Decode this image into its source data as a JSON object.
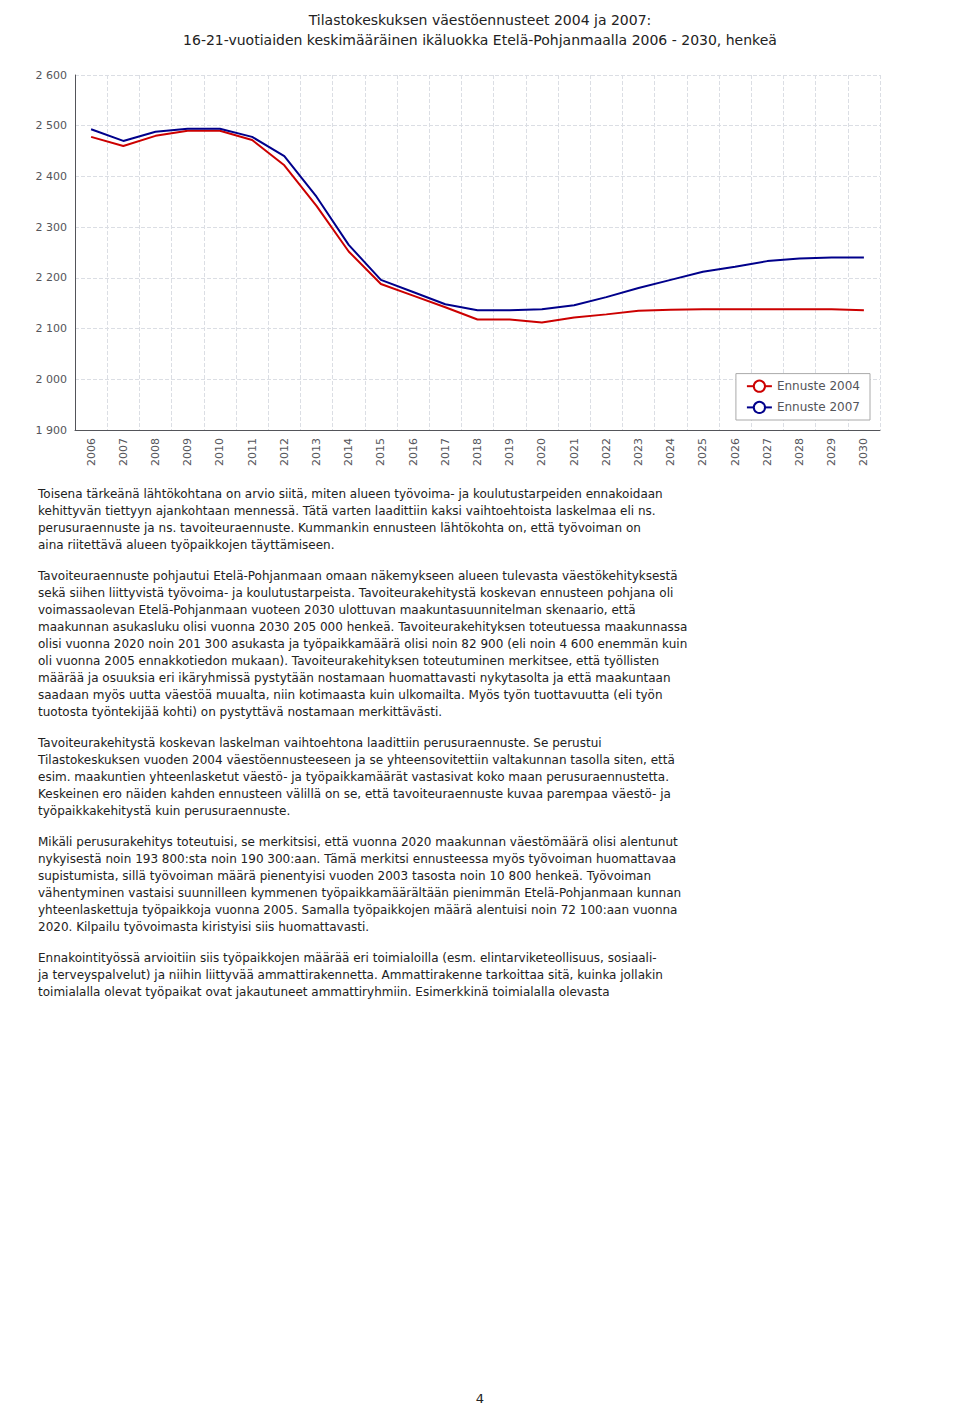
{
  "chart_data": {
    "type": "line",
    "title": "Tilastokeskuksen väestöennusteet 2004 ja 2007:",
    "subtitle": "16-21-vuotiaiden keskimääräinen ikäluokka Etelä-Pohjanmaalla 2006 - 2030, henkeä",
    "categories": [
      "2006",
      "2007",
      "2008",
      "2009",
      "2010",
      "2011",
      "2012",
      "2013",
      "2014",
      "2015",
      "2016",
      "2017",
      "2018",
      "2019",
      "2020",
      "2021",
      "2022",
      "2023",
      "2024",
      "2025",
      "2026",
      "2027",
      "2028",
      "2029",
      "2030"
    ],
    "series": [
      {
        "name": "Ennuste 2004",
        "color": "#cc0000",
        "values": [
          2478,
          2460,
          2480,
          2490,
          2490,
          2472,
          2422,
          2342,
          2252,
          2188,
          2165,
          2142,
          2118,
          2118,
          2112,
          2122,
          2128,
          2135,
          2137,
          2138,
          2138,
          2138,
          2138,
          2138,
          2136
        ]
      },
      {
        "name": "Ennuste 2007",
        "color": "#00008b",
        "values": [
          2493,
          2470,
          2488,
          2494,
          2494,
          2478,
          2440,
          2360,
          2265,
          2196,
          2172,
          2148,
          2136,
          2136,
          2138,
          2146,
          2162,
          2180,
          2196,
          2212,
          2222,
          2233,
          2238,
          2240,
          2240
        ]
      }
    ],
    "ylim": [
      1900,
      2600
    ],
    "yticks": [
      {
        "value": 1900,
        "label": "1 900"
      },
      {
        "value": 2000,
        "label": "2 000"
      },
      {
        "value": 2100,
        "label": "2 100"
      },
      {
        "value": 2200,
        "label": "2 200"
      },
      {
        "value": 2300,
        "label": "2 300"
      },
      {
        "value": 2400,
        "label": "2 400"
      },
      {
        "value": 2500,
        "label": "2 500"
      },
      {
        "value": 2600,
        "label": "2 600"
      }
    ],
    "grid": true,
    "legend": "lower right",
    "annotations": [
      "Toisena tärkeänä lähtökohtana on arvio siitä, miten alueen työvoima- ja koulutustarpeiden ennakoidaan\nkehittyvän tiettyyn ajankohtaan mennessä. Tätä varten laadittiin kaksi vaihtoehtoista laskelmaa eli ns.\nperusuraennuste ja ns. tavoiteuraennuste. Kummankin ennusteen lähtökohta on, että työvoiman on\naina riitettävä alueen työpaikkojen täyttämiseen.",
      "Tavoiteuraennuste pohjautui Etelä-Pohjanmaan omaan näkemykseen alueen tulevasta väestökehityksestä\nsekä siihen liittyvistä työvoima- ja koulutustarpeista. Tavoiteurakehitystä koskevan ennusteen pohjana oli\nvoimassaolevan Etelä-Pohjanmaan vuoteen 2030 ulottuvan maakuntasuunnitelman skenaario, että\nmaakunnan asukasluku olisi vuonna 2030 205 000 henkeä. Tavoiteurakehityksen toteutuessa maakunnassa\nolisi vuonna 2020 noin 201 300 asukasta ja työpaikkamäärä olisi noin 82 900 (eli noin 4 600 enemmän kuin\noli vuonna 2005 ennakkotiedon mukaan). Tavoiteurakehityksen toteutuminen merkitsee, että työllisten\nmäärää ja osuuksia eri ikäryhmissä pystytään nostamaan huomattavasti nykytasolta ja että maakuntaan\nsaadaan myös uutta väestöä muualta, niin kotimaasta kuin ulkomailta. Myös työn tuottavuutta (eli työn\ntuotosta työntekijää kohti) on pystyttävä nostamaan merkittävästi.",
      "Tavoiteurakehitystä koskevan laskelman vaihtoehtona laadittiin perusuraennuste. Se perustui\nTilastokeskuksen vuoden 2004 väestöennusteeseen ja se yhteensovitettiin valtakunnan tasolla siten, että\nesim. maakuntien yhteenlasketut väestö- ja työpaikkamäärät vastasivat koko maan perusuraennustetta.\nKeskeinen ero näiden kahden ennusteen välillä on se, että tavoiteuraennuste kuvaa parempaa väestö- ja\ntyöpaikkakehitystä kuin perusuraennuste.",
      "Mikäli perusurakehitys toteutuisi, se merkitsisi, että vuonna 2020 maakunnan väestömäärä olisi alentunut\nnykyisestä noin 193 800:sta noin 190 300:aan. Tämä merkitsi ennusteessa myös työvoiman huomattavaa\nsupistumista, sillä työvoiman määrä pienentyisi vuoden 2003 tasosta noin 10 800 henkeä. Työvoiman\nvähentyminen vastaisi suunnilleen kymmenen työpaikkamäärältään pienimmän Etelä-Pohjanmaan kunnan\nyhteenlaskettuja työpaikkoja vuonna 2005. Samalla työpaikkojen määrä alentuisi noin 72 100:aan vuonna\n2020. Kilpailu työvoimasta kiristyisi siis huomattavasti.",
      "Ennakointityössä arvioitiin siis työpaikkojen määrää eri toimialoilla (esm. elintarviketeollisuus, sosiaali-\nja terveyspalvelut) ja niihin liittyvää ammattirakennetta. Ammattirakenne tarkoittaa sitä, kuinka jollakin\ntoimialalla olevat työpaikat ovat jakautuneet ammattiryhmiin. Esimerkkinä toimialalla olevasta",
      "4"
    ]
  }
}
